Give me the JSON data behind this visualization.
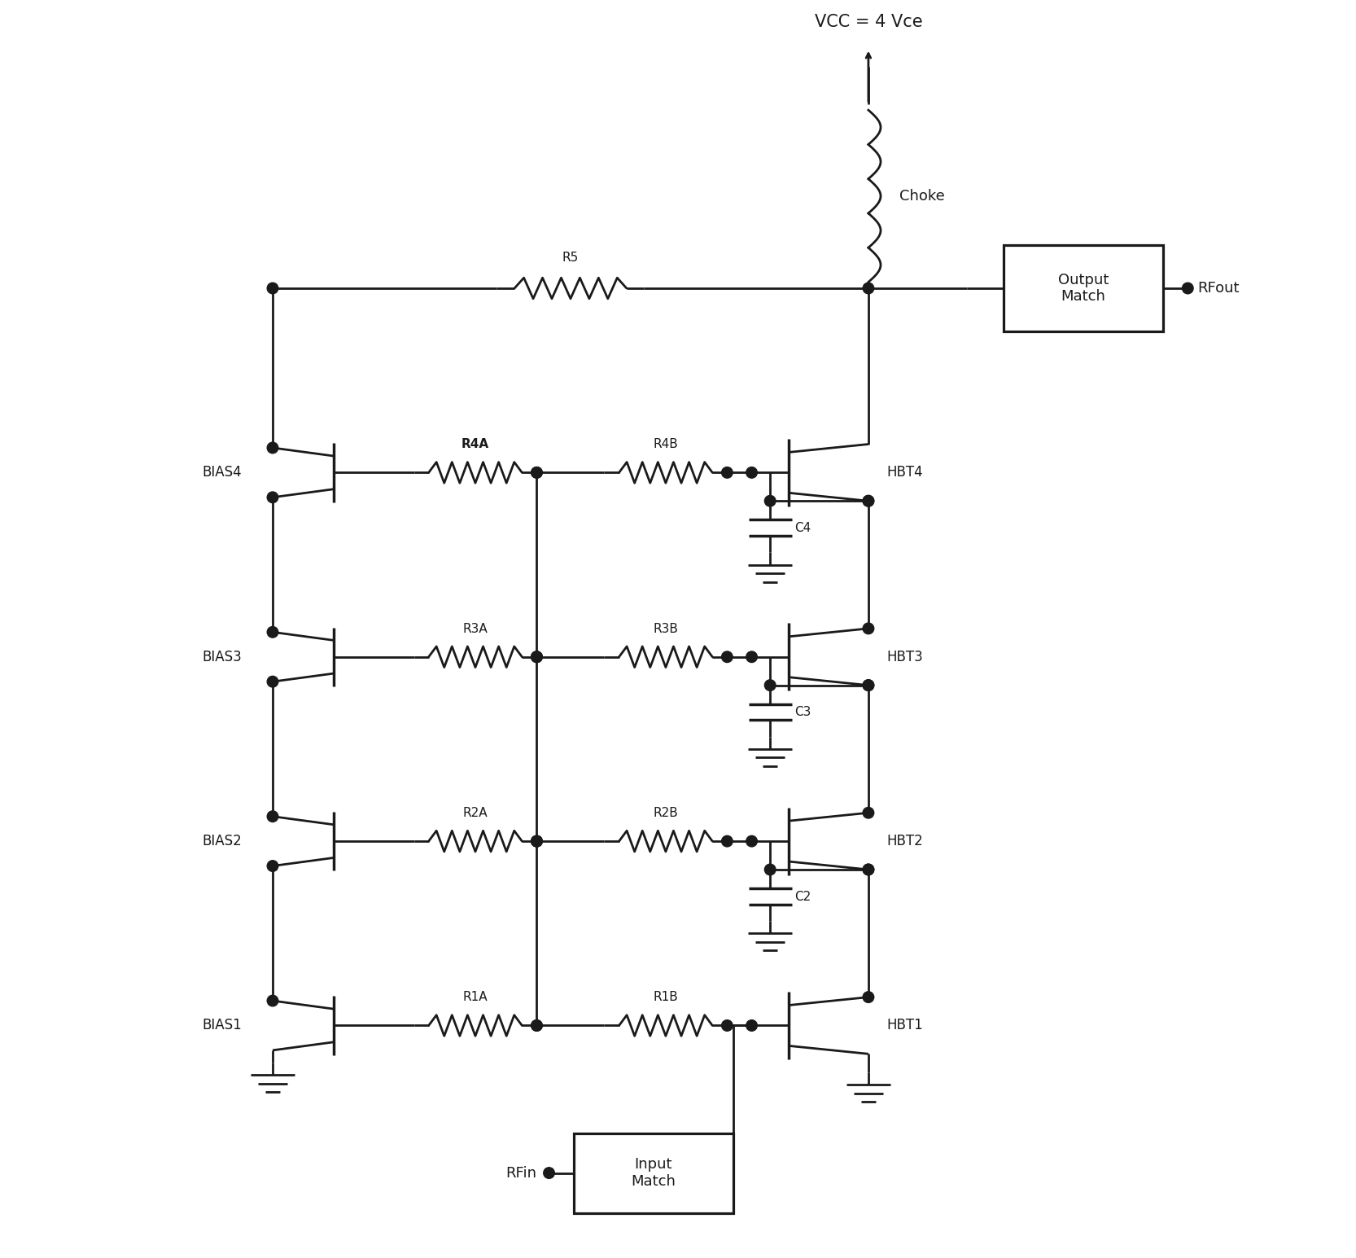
{
  "vcc_label": "VCC = 4 Vce",
  "choke_label": "Choke",
  "rfout_label": "RFout",
  "rfin_label": "RFin",
  "output_match_label": "Output\nMatch",
  "input_match_label": "Input\nMatch",
  "bg_color": "#ffffff",
  "line_color": "#1a1a1a",
  "text_color": "#1a1a1a",
  "fig_width": 16.66,
  "fig_height": 15.45,
  "lw": 2.0,
  "stages": [
    {
      "num": 1,
      "ra": "R1A",
      "rb": "R1B",
      "hbt": "HBT1",
      "bias": "BIAS1",
      "cap": null,
      "ra_bold": false
    },
    {
      "num": 2,
      "ra": "R2A",
      "rb": "R2B",
      "hbt": "HBT2",
      "bias": "BIAS2",
      "cap": "C2",
      "ra_bold": false
    },
    {
      "num": 3,
      "ra": "R3A",
      "rb": "R3B",
      "hbt": "HBT3",
      "bias": "BIAS3",
      "cap": "C3",
      "ra_bold": false
    },
    {
      "num": 4,
      "ra": "R4A",
      "rb": "R4B",
      "hbt": "HBT4",
      "bias": "BIAS4",
      "cap": "C4",
      "ra_bold": true
    }
  ]
}
